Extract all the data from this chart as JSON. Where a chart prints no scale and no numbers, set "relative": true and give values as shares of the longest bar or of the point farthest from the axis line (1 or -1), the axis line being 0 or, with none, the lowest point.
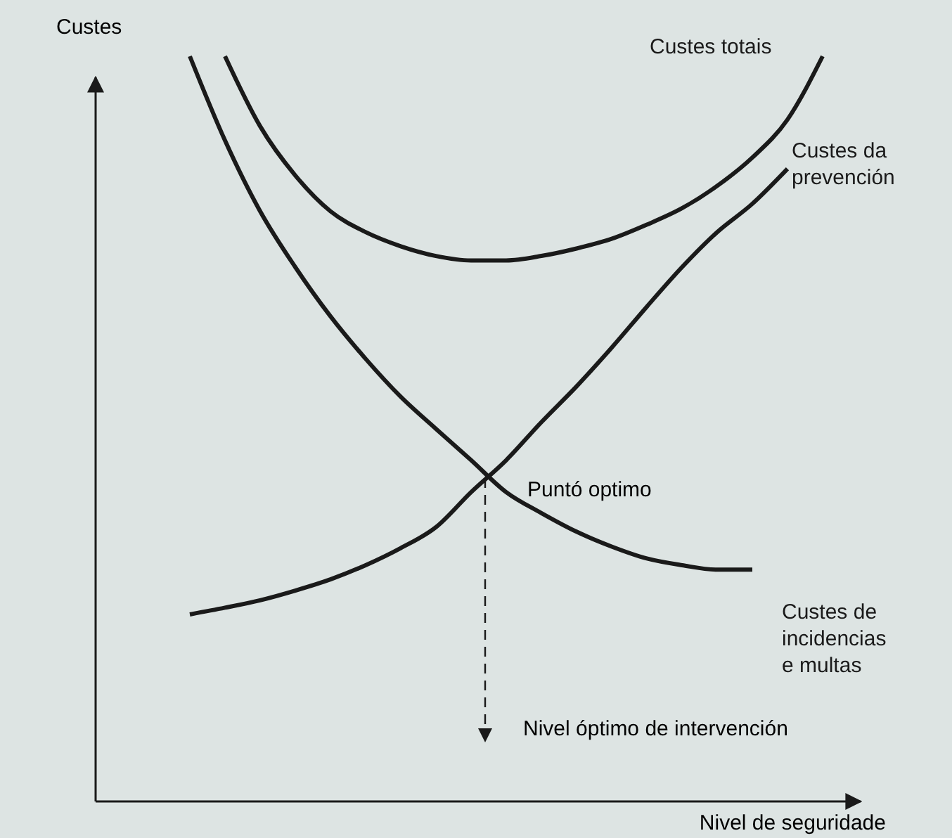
{
  "chart_data": {
    "type": "line",
    "relative": true,
    "xlabel": "Nivel de seguridade",
    "ylabel": "Custes",
    "categories": [
      null,
      null,
      null,
      null,
      null,
      null,
      null,
      null,
      null,
      null,
      null,
      null,
      null,
      null,
      null,
      null,
      null,
      null,
      null
    ],
    "series": [
      {
        "name": "Custes totais",
        "color": "#1a1a1a",
        "values": [
          null,
          1.0,
          0.906,
          0.84,
          0.792,
          0.764,
          0.745,
          0.732,
          0.726,
          0.726,
          0.732,
          0.742,
          0.755,
          0.774,
          0.796,
          0.826,
          0.864,
          0.915,
          1.0
        ]
      },
      {
        "name": "Custes da prevención",
        "color": "#1a1a1a",
        "values": [
          0.251,
          0.26,
          0.27,
          0.283,
          0.298,
          0.317,
          0.34,
          0.368,
          0.415,
          0.458,
          0.509,
          0.557,
          0.609,
          0.664,
          0.717,
          0.764,
          0.802,
          0.849,
          null
        ]
      },
      {
        "name": "Custes de incidencias e multas",
        "color": "#1a1a1a",
        "values": [
          1.0,
          0.887,
          0.792,
          0.717,
          0.651,
          0.594,
          0.543,
          0.5,
          0.458,
          0.415,
          0.387,
          0.362,
          0.342,
          0.326,
          0.317,
          0.311,
          0.311,
          null,
          null
        ]
      }
    ],
    "annotations": [
      "Puntó optimo",
      "Nivel óptimo de intervención"
    ],
    "marker": "none",
    "line_style": "solid"
  }
}
